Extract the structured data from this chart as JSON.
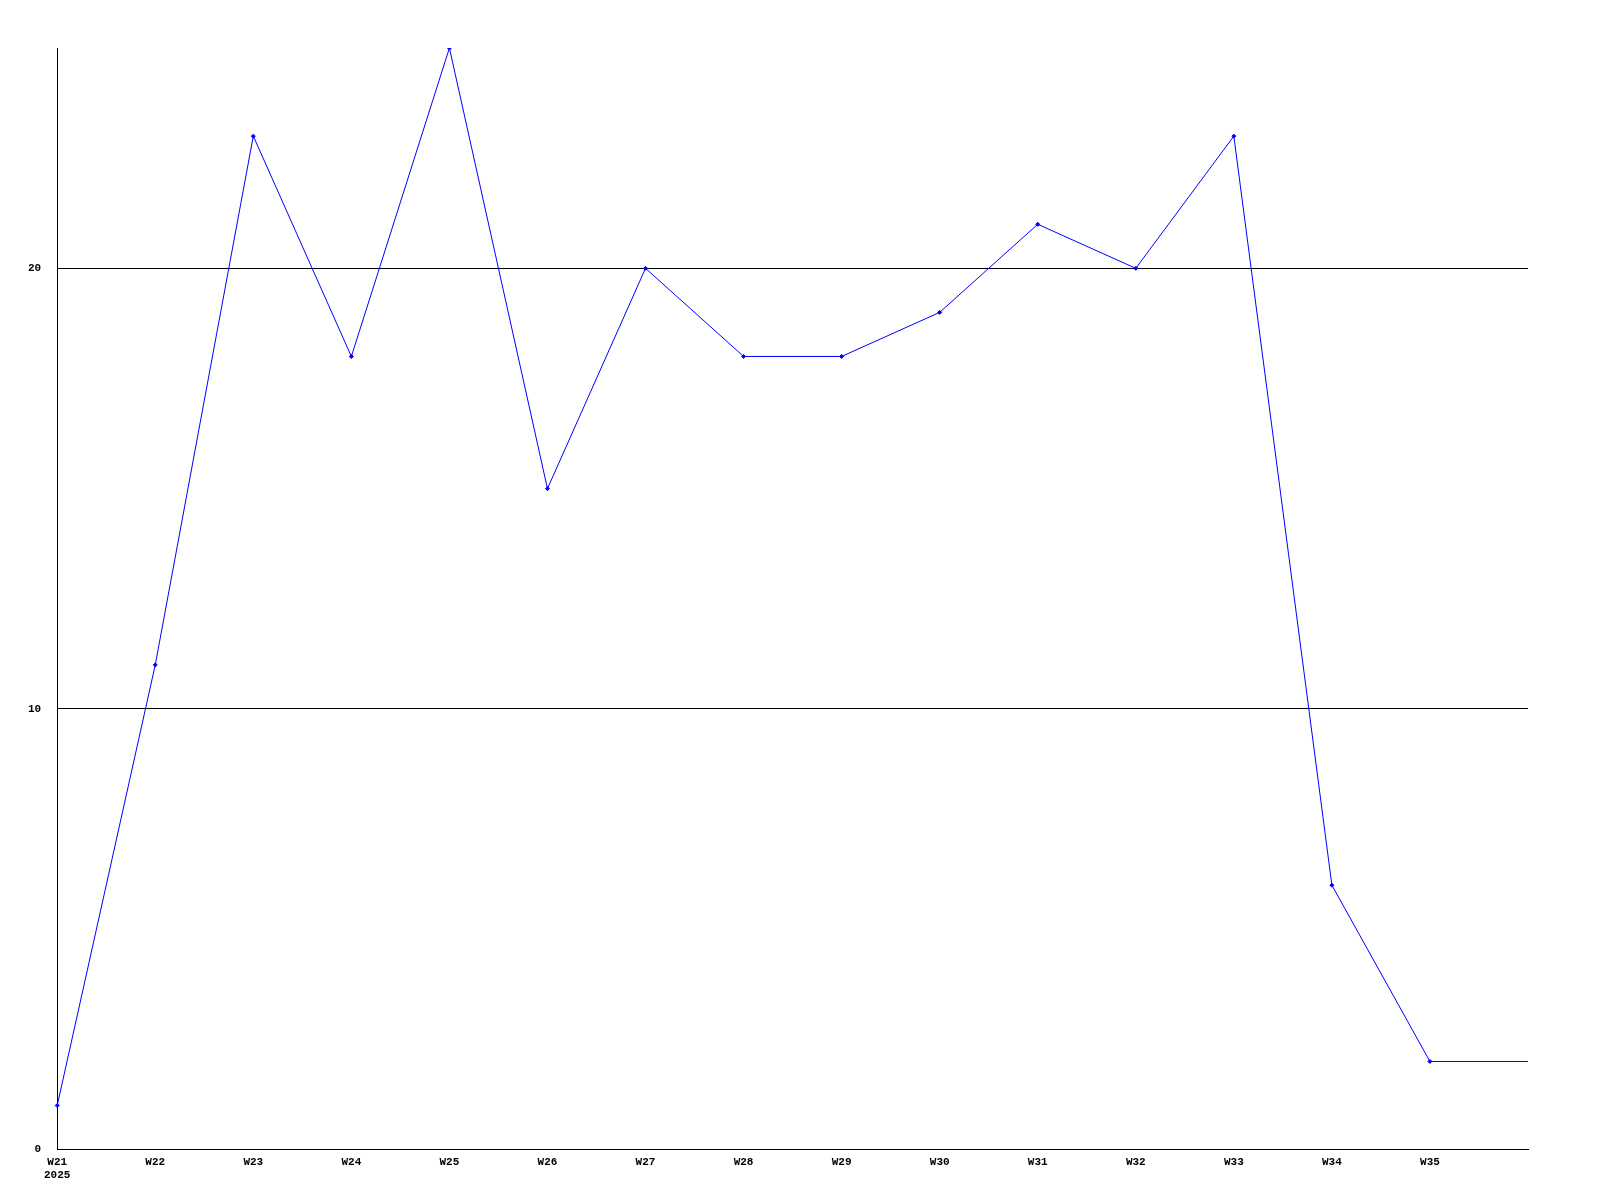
{
  "chart_data": {
    "type": "line",
    "categories": [
      "W21\n2025",
      "W22",
      "W23",
      "W24",
      "W25",
      "W26",
      "W27",
      "W28",
      "W29",
      "W30",
      "W31",
      "W32",
      "W33",
      "W34",
      "W35",
      null
    ],
    "series": [
      {
        "color": "#0000ff",
        "values": [
          1,
          11,
          23,
          18,
          25,
          15,
          20,
          18,
          18,
          19,
          21,
          20,
          23,
          6,
          2,
          2
        ]
      }
    ],
    "ylim": [
      0,
      25
    ],
    "yticks": [
      0,
      10,
      20
    ],
    "grid": "y",
    "legend": false,
    "marker": "diamond",
    "line_style": "solid"
  }
}
